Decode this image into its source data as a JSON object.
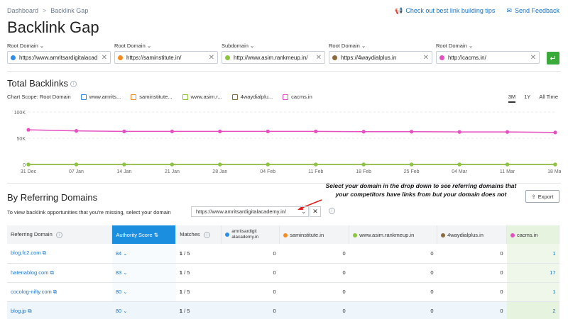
{
  "breadcrumb": {
    "item1": "Dashboard",
    "separator": ">",
    "item2": "Backlink Gap"
  },
  "top_links": {
    "tips": "Check out best link building tips",
    "feedback": "Send Feedback"
  },
  "title": "Backlink Gap",
  "domains": [
    {
      "type": "Root Domain",
      "value": "https://www.amritsardigitalacad",
      "color": "#2e8fe5"
    },
    {
      "type": "Root Domain",
      "value": "https://saminstitute.in/",
      "color": "#f58a1f"
    },
    {
      "type": "Subdomain",
      "value": "http://www.asim.rankmeup.in/",
      "color": "#8cc63e"
    },
    {
      "type": "Root Domain",
      "value": "https://4waydialplus.in",
      "color": "#8b6b3d"
    },
    {
      "type": "Root Domain",
      "value": "http://cacms.in/",
      "color": "#e64fbf"
    }
  ],
  "total_backlinks": {
    "title": "Total Backlinks",
    "chart_scope_label": "Chart Scope:",
    "chart_scope_value": "Root Domain",
    "legend": [
      {
        "label": "www.amrits...",
        "color": "#2e8fe5"
      },
      {
        "label": "saminstitute...",
        "color": "#f58a1f"
      },
      {
        "label": "www.asim.r...",
        "color": "#8cc63e"
      },
      {
        "label": "4waydialplu...",
        "color": "#8b6b3d"
      },
      {
        "label": "cacms.in",
        "color": "#e64fbf"
      }
    ],
    "periods": [
      "3M",
      "1Y",
      "All Time"
    ],
    "active_period": "3M"
  },
  "chart_data": {
    "type": "line",
    "x": [
      "31 Dec",
      "07 Jan",
      "14 Jan",
      "21 Jan",
      "28 Jan",
      "04 Feb",
      "11 Feb",
      "18 Feb",
      "25 Feb",
      "04 Mar",
      "11 Mar",
      "18 Mar"
    ],
    "y_ticks": [
      "100K",
      "50K",
      "0"
    ],
    "ylim": [
      0,
      100000
    ],
    "series": [
      {
        "name": "cacms.in",
        "color": "#e64fbf",
        "values": [
          66000,
          64000,
          63000,
          63000,
          63000,
          63000,
          63000,
          62500,
          62500,
          62000,
          62000,
          61000
        ]
      },
      {
        "name": "4waydialplu...",
        "color": "#8b6b3d",
        "values": [
          0,
          0,
          0,
          0,
          0,
          0,
          0,
          0,
          0,
          0,
          0,
          0
        ]
      },
      {
        "name": "www.asim.r...",
        "color": "#8cc63e",
        "values": [
          0,
          0,
          0,
          0,
          0,
          0,
          0,
          0,
          0,
          0,
          0,
          0
        ]
      }
    ]
  },
  "referring": {
    "title": "By Referring Domains",
    "note": "To view backlink opportunities that you're missing, select your domain",
    "selected_domain": "https://www.amritsardigitalacademy.in/",
    "annotation_line1": "Select your domain in the drop down to see referring domains that",
    "annotation_line2": "your competitors have links from but your domain does not",
    "export": "Export",
    "columns": {
      "referring_domain": "Referring Domain",
      "authority": "Authority Score",
      "matches": "Matches",
      "d1_line1": "amritsardigit",
      "d1_line2": "alacademy.in",
      "d2": "saminstitute.in",
      "d3": "www.asim.rankmeup.in",
      "d4": "4waydialplus.in",
      "d5": "cacms.in"
    },
    "rows": [
      {
        "domain": "blog.fc2.com",
        "authority": "84",
        "matches": "1",
        "of": "/ 5",
        "d1": "0",
        "d2": "0",
        "d3": "0",
        "d4": "0",
        "d5": "1"
      },
      {
        "domain": "hatenablog.com",
        "authority": "83",
        "matches": "1",
        "of": "/ 5",
        "d1": "0",
        "d2": "0",
        "d3": "0",
        "d4": "0",
        "d5": "17"
      },
      {
        "domain": "cocolog-nifty.com",
        "authority": "80",
        "matches": "1",
        "of": "/ 5",
        "d1": "0",
        "d2": "0",
        "d3": "0",
        "d4": "0",
        "d5": "1"
      },
      {
        "domain": "blog.jp",
        "authority": "80",
        "matches": "1",
        "of": "/ 5",
        "d1": "0",
        "d2": "0",
        "d3": "0",
        "d4": "0",
        "d5": "2"
      }
    ]
  }
}
